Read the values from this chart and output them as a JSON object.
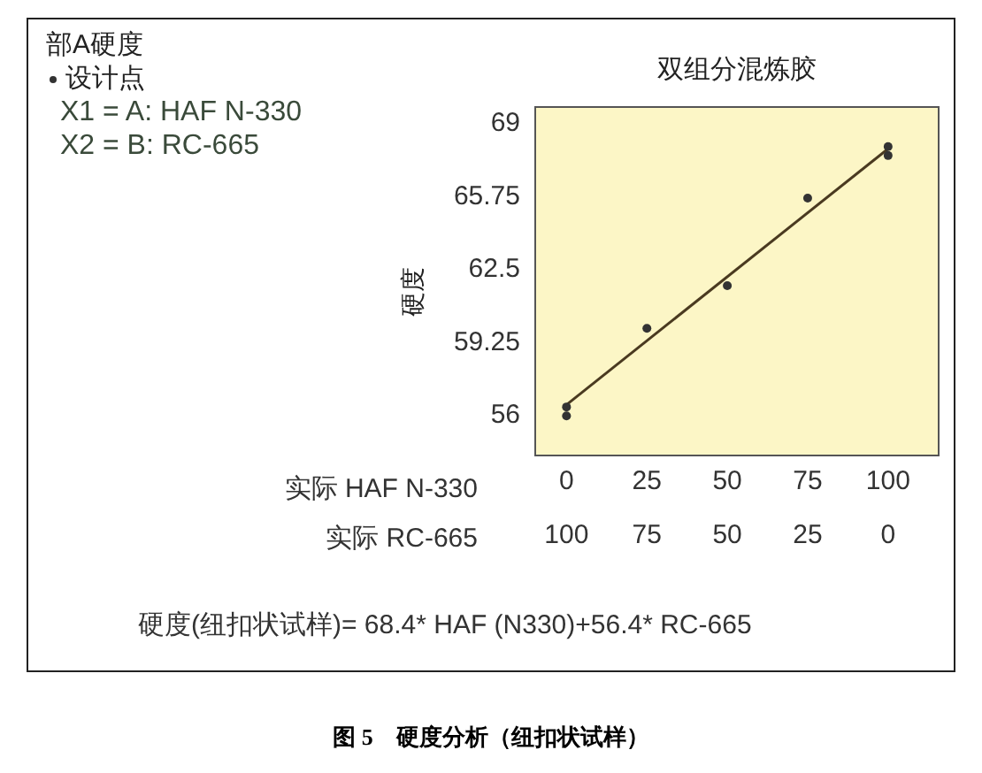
{
  "chart_data": {
    "type": "scatter",
    "title": "双组分混炼胶",
    "xlabel": "实际 HAF N-330",
    "x2label": "实际 RC-665",
    "ylabel": "硬度",
    "legend_title": "部A硬度",
    "legend": "top left",
    "marker": "circle",
    "xlim": [
      -10,
      116
    ],
    "xticks": [
      0,
      25,
      50,
      75,
      100
    ],
    "x2lim": [
      110,
      -16
    ],
    "x2ticks": [
      100,
      75,
      50,
      25,
      0
    ],
    "ylim": [
      54.1,
      69.7
    ],
    "yticks": [
      56,
      59.25,
      62.5,
      65.75,
      69
    ],
    "x": [
      0,
      0,
      25,
      50,
      75,
      100,
      100
    ],
    "series": [
      {
        "name": "设计点",
        "color": "#333333",
        "values": [
          56.3,
          55.9,
          59.8,
          61.7,
          65.6,
          67.9,
          67.5
        ]
      },
      {
        "type": "line",
        "color": "#4a3a20",
        "x": [
          0,
          100
        ],
        "values": [
          56.4,
          67.8
        ],
        "marker": "none"
      }
    ],
    "annotations": [
      "X1 = A: HAF N-330",
      "X2 = B: RC-665",
      "硬度(纽扣状试样)= 68.4* HAF (N330)+56.4* RC-665",
      "图 5　硬度分析（纽扣状试样）"
    ]
  }
}
